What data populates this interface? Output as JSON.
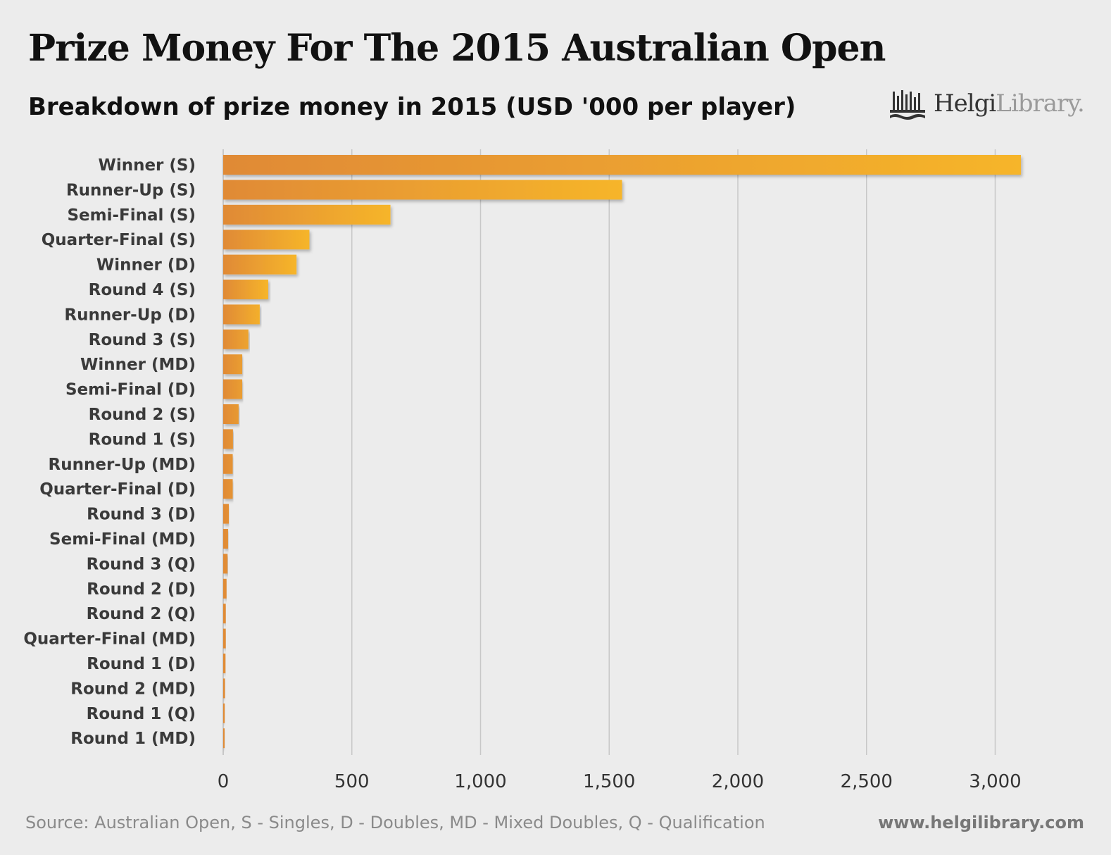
{
  "header": {
    "title": "Prize Money For The 2015 Australian Open",
    "subtitle": "Breakdown of prize money in 2015 (USD '000 per player)"
  },
  "logo": {
    "name_dark": "Helgi",
    "name_light": "Library."
  },
  "footer": {
    "source": "Source: Australian Open, S - Singles, D - Doubles, MD - Mixed Doubles, Q - Qualification",
    "url": "www.helgilibrary.com"
  },
  "colors": {
    "bar_start": "#e08a36",
    "bar_end": "#f6b52a",
    "grid": "#c8c8c8",
    "background": "#ececec"
  },
  "chart_data": {
    "type": "bar",
    "orientation": "horizontal",
    "title": "Prize Money For The 2015 Australian Open",
    "subtitle": "Breakdown of prize money in 2015 (USD '000 per player)",
    "categories": [
      "Winner (S)",
      "Runner-Up (S)",
      "Semi-Final (S)",
      "Quarter-Final (S)",
      "Winner (D)",
      "Round 4 (S)",
      "Runner-Up (D)",
      "Round 3 (S)",
      "Winner (MD)",
      "Semi-Final (D)",
      "Round 2 (S)",
      "Round 1 (S)",
      "Runner-Up (MD)",
      "Quarter-Final (D)",
      "Round 3 (D)",
      "Semi-Final (MD)",
      "Round 3 (Q)",
      "Round 2 (D)",
      "Round 2 (Q)",
      "Quarter-Final (MD)",
      "Round 1 (D)",
      "Round 2 (MD)",
      "Round 1 (Q)",
      "Round 1 (MD)"
    ],
    "values": [
      3100,
      1550,
      650,
      335,
      285,
      175,
      142,
      98,
      74,
      74,
      60,
      38,
      37,
      37,
      22,
      19,
      17,
      13,
      10,
      10,
      9,
      7,
      6,
      4
    ],
    "xlim": [
      0,
      3150
    ],
    "xticks": [
      0,
      500,
      1000,
      1500,
      2000,
      2500,
      3000
    ],
    "xtick_labels": [
      "0",
      "500",
      "1,000",
      "1,500",
      "2,000",
      "2,500",
      "3,000"
    ],
    "grid": true,
    "legend": "none"
  }
}
